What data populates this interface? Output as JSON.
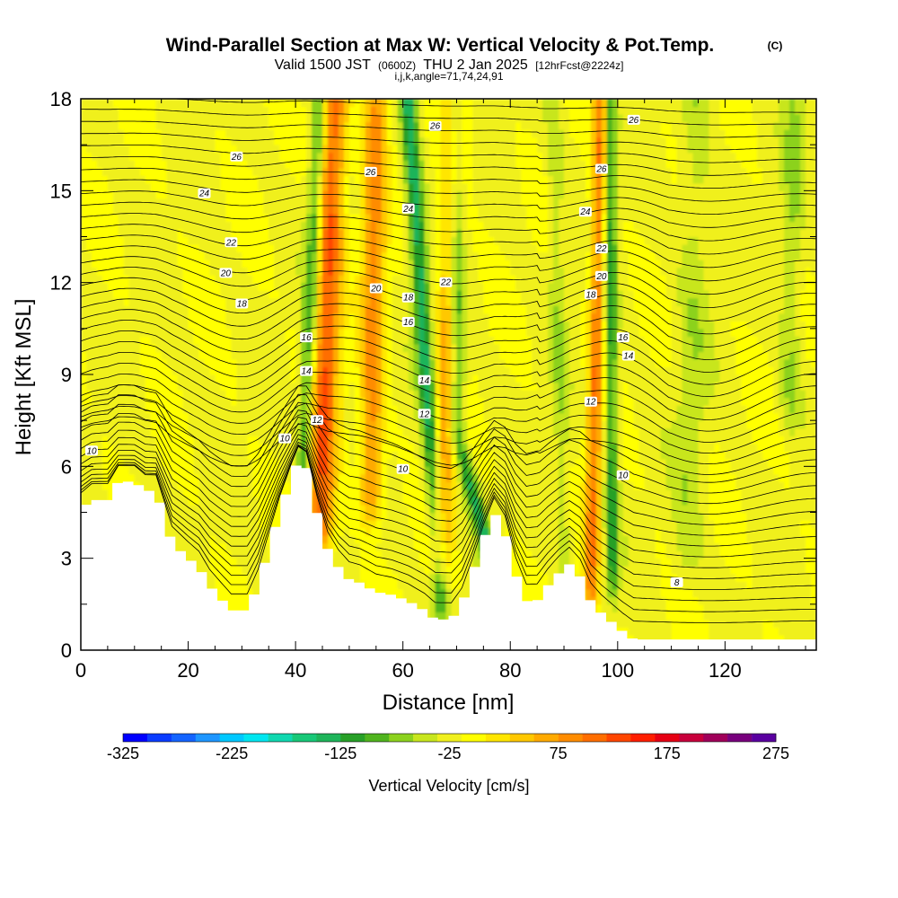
{
  "title": {
    "main": "Wind-Parallel Section at Max W: Vertical Velocity & Pot.Temp.",
    "copyright": "(C)",
    "valid_prefix": "Valid 1500 JST",
    "valid_utc": "(0600Z)",
    "valid_date": "THU 2 Jan 2025",
    "forecast": "[12hrFcst@2224z]",
    "indices": "i,j,k,angle=71,74,24,91"
  },
  "chart_data": {
    "type": "heatmap",
    "xlabel": "Distance [nm]",
    "ylabel": "Height [Kft MSL]",
    "xlim": [
      0,
      137
    ],
    "ylim": [
      0,
      18
    ],
    "x_ticks": [
      0,
      20,
      40,
      60,
      80,
      100,
      120
    ],
    "x_tick_labels": [
      "0",
      "20",
      "40",
      "60",
      "80",
      "100",
      "120"
    ],
    "y_ticks": [
      0,
      3,
      6,
      9,
      12,
      15,
      18
    ],
    "y_tick_labels": [
      "0",
      "3",
      "6",
      "9",
      "12",
      "15",
      "18"
    ],
    "terrain_profile": [
      [
        0,
        4.6
      ],
      [
        2,
        4.9
      ],
      [
        5,
        4.9
      ],
      [
        7,
        5.5
      ],
      [
        10,
        5.5
      ],
      [
        12,
        5.2
      ],
      [
        14,
        5.2
      ],
      [
        17,
        3.5
      ],
      [
        20,
        3.0
      ],
      [
        22,
        2.7
      ],
      [
        24,
        2.1
      ],
      [
        26,
        1.7
      ],
      [
        28,
        1.3
      ],
      [
        31,
        1.3
      ],
      [
        33,
        2.1
      ],
      [
        35,
        3.3
      ],
      [
        37,
        4.5
      ],
      [
        39,
        5.5
      ],
      [
        40.5,
        6.2
      ],
      [
        42,
        6.0
      ],
      [
        44,
        4.5
      ],
      [
        46,
        3.3
      ],
      [
        48,
        2.7
      ],
      [
        50,
        2.3
      ],
      [
        52,
        2.2
      ],
      [
        55,
        1.9
      ],
      [
        58,
        1.8
      ],
      [
        61,
        1.6
      ],
      [
        64,
        1.3
      ],
      [
        66,
        1.0
      ],
      [
        69,
        1.0
      ],
      [
        71,
        1.5
      ],
      [
        73,
        2.5
      ],
      [
        75,
        3.6
      ],
      [
        77,
        4.5
      ],
      [
        79,
        3.9
      ],
      [
        81,
        2.5
      ],
      [
        83,
        1.6
      ],
      [
        85,
        1.6
      ],
      [
        87,
        2.1
      ],
      [
        89,
        2.5
      ],
      [
        91,
        2.8
      ],
      [
        93,
        2.4
      ],
      [
        95,
        1.6
      ],
      [
        97,
        1.2
      ],
      [
        99,
        0.9
      ],
      [
        101,
        0.6
      ],
      [
        103,
        0.35
      ],
      [
        137,
        0.35
      ]
    ],
    "velocity_field": {
      "units": "cm/s",
      "background": 20,
      "features": [
        {
          "x": 44.5,
          "x_top": 47,
          "z_low": 4,
          "z_high": 17,
          "width": 2.6,
          "amp": 155
        },
        {
          "x": 41.5,
          "x_top": 44.5,
          "z_low": 5.5,
          "z_high": 18,
          "width": 1.4,
          "amp": -115
        },
        {
          "x": 54,
          "x_top": 55,
          "z_low": 5,
          "z_high": 18,
          "width": 2.2,
          "amp": 115
        },
        {
          "x": 67,
          "x_top": 61,
          "z_low": 2,
          "z_high": 18,
          "width": 1.6,
          "amp": -135
        },
        {
          "x": 67,
          "x_top": 70,
          "z_low": 3,
          "z_high": 18,
          "width": 2.2,
          "amp": 110
        },
        {
          "x": 78,
          "x_top": 70,
          "z_low": 2,
          "z_high": 7,
          "width": 1.5,
          "amp": -125
        },
        {
          "x": 95,
          "x_top": 97,
          "z_low": 2,
          "z_high": 18,
          "width": 1.4,
          "amp": 130
        },
        {
          "x": 99,
          "x_top": 98.5,
          "z_low": 2.5,
          "z_high": 18,
          "width": 1.2,
          "amp": -110
        },
        {
          "x": 90,
          "x_top": 88,
          "z_low": 3,
          "z_high": 18,
          "width": 1.5,
          "amp": -40
        },
        {
          "x": 113,
          "x_top": 115,
          "z_low": 3,
          "z_high": 18,
          "width": 3,
          "amp": -35
        },
        {
          "x": 132,
          "x_top": 133,
          "z_low": 8,
          "z_high": 18,
          "width": 2,
          "amp": -45
        }
      ]
    },
    "isentropes": {
      "quantity": "Potential temperature",
      "labels": [
        {
          "text": "10",
          "x": 2,
          "z": 6.5
        },
        {
          "text": "10",
          "x": 38,
          "z": 6.9
        },
        {
          "text": "10",
          "x": 60,
          "z": 5.9
        },
        {
          "text": "10",
          "x": 101,
          "z": 5.7
        },
        {
          "text": "12",
          "x": 44,
          "z": 7.5
        },
        {
          "text": "12",
          "x": 64,
          "z": 7.7
        },
        {
          "text": "12",
          "x": 95,
          "z": 8.1
        },
        {
          "text": "14",
          "x": 42,
          "z": 9.1
        },
        {
          "text": "14",
          "x": 64,
          "z": 8.8
        },
        {
          "text": "14",
          "x": 102,
          "z": 9.6
        },
        {
          "text": "16",
          "x": 42,
          "z": 10.2
        },
        {
          "text": "16",
          "x": 61,
          "z": 10.7
        },
        {
          "text": "16",
          "x": 101,
          "z": 10.2
        },
        {
          "text": "18",
          "x": 30,
          "z": 11.3
        },
        {
          "text": "18",
          "x": 61,
          "z": 11.5
        },
        {
          "text": "18",
          "x": 95,
          "z": 11.6
        },
        {
          "text": "20",
          "x": 27,
          "z": 12.3
        },
        {
          "text": "20",
          "x": 55,
          "z": 11.8
        },
        {
          "text": "20",
          "x": 97,
          "z": 12.2
        },
        {
          "text": "22",
          "x": 28,
          "z": 13.3
        },
        {
          "text": "22",
          "x": 68,
          "z": 12.0
        },
        {
          "text": "22",
          "x": 97,
          "z": 13.1
        },
        {
          "text": "24",
          "x": 23,
          "z": 14.9
        },
        {
          "text": "24",
          "x": 61,
          "z": 14.4
        },
        {
          "text": "24",
          "x": 94,
          "z": 14.3
        },
        {
          "text": "26",
          "x": 29,
          "z": 16.1
        },
        {
          "text": "26",
          "x": 54,
          "z": 15.6
        },
        {
          "text": "26",
          "x": 97,
          "z": 15.7
        },
        {
          "text": "26",
          "x": 66,
          "z": 17.1
        },
        {
          "text": "26",
          "x": 103,
          "z": 17.3
        },
        {
          "text": "8",
          "x": 111,
          "z": 2.2
        }
      ]
    },
    "colorbar": {
      "title": "Vertical Velocity [cm/s]",
      "min": -325,
      "max": 275,
      "step": 25,
      "tick_values": [
        -325,
        -225,
        -125,
        -25,
        75,
        175,
        275
      ],
      "tick_labels": [
        "-325",
        "-225",
        "-125",
        "-25",
        "75",
        "175",
        "275"
      ],
      "colors": [
        "#0000ff",
        "#0a3cff",
        "#1464ff",
        "#1e96ff",
        "#00c8ff",
        "#00e6f0",
        "#10d8b0",
        "#18c878",
        "#1eb45a",
        "#28a028",
        "#50b41e",
        "#8cd21e",
        "#c8e61e",
        "#f0f01e",
        "#ffff00",
        "#ffe600",
        "#ffc800",
        "#ffaa00",
        "#ff8c00",
        "#ff6e00",
        "#ff4600",
        "#ff1e00",
        "#e60014",
        "#c8003c",
        "#a0005a",
        "#78007d",
        "#5a00a0"
      ]
    }
  }
}
